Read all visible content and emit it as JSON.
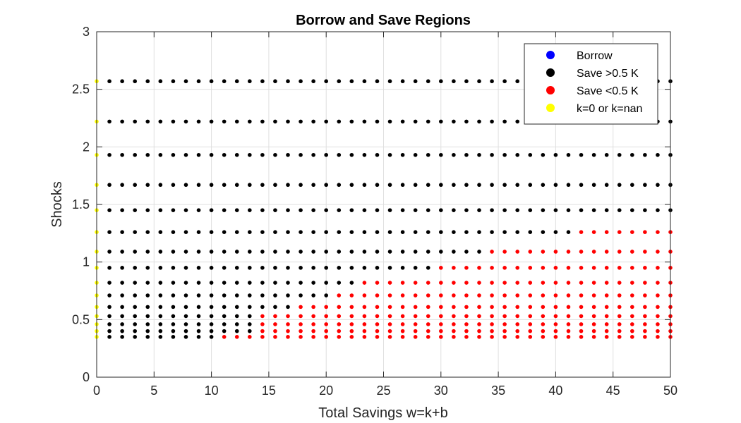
{
  "chart_data": {
    "type": "scatter",
    "title": "Borrow and Save Regions",
    "xlabel": "Total Savings w=k+b",
    "ylabel": "Shocks",
    "xlim": [
      0,
      50
    ],
    "ylim": [
      0,
      3
    ],
    "xticks": [
      0,
      5,
      10,
      15,
      20,
      25,
      30,
      35,
      40,
      45,
      50
    ],
    "yticks": [
      0,
      0.5,
      1,
      1.5,
      2,
      2.5,
      3
    ],
    "xtick_labels": [
      "0",
      "5",
      "10",
      "15",
      "20",
      "25",
      "30",
      "35",
      "40",
      "45",
      "50"
    ],
    "ytick_labels": [
      "0",
      "0.5",
      "1",
      "1.5",
      "2",
      "2.5",
      "3"
    ],
    "grid": true,
    "legend_position": "top-right",
    "x_grid": {
      "start": 0,
      "end": 50,
      "count": 46
    },
    "shock_levels": [
      0.35,
      0.4,
      0.46,
      0.53,
      0.61,
      0.71,
      0.82,
      0.95,
      1.09,
      1.26,
      1.45,
      1.67,
      1.93,
      2.22,
      2.57
    ],
    "series": [
      {
        "name": "Borrow",
        "color": "#0000ff",
        "rule": "none"
      },
      {
        "name": "Save >0.5 K",
        "color": "#000000",
        "rule": "x > 0 and x < red_threshold"
      },
      {
        "name": "Save <0.5 K",
        "color": "#ff0000",
        "rule": "x >= red_threshold"
      },
      {
        "name": "k=0 or k=nan",
        "color": "#ffff00",
        "rule": "x = 0"
      }
    ],
    "red_threshold_by_shock": [
      11.1,
      14.4,
      14.4,
      14.4,
      16.7,
      21.1,
      23.3,
      30.0,
      34.4,
      42.2,
      null,
      null,
      null,
      null,
      null
    ]
  }
}
